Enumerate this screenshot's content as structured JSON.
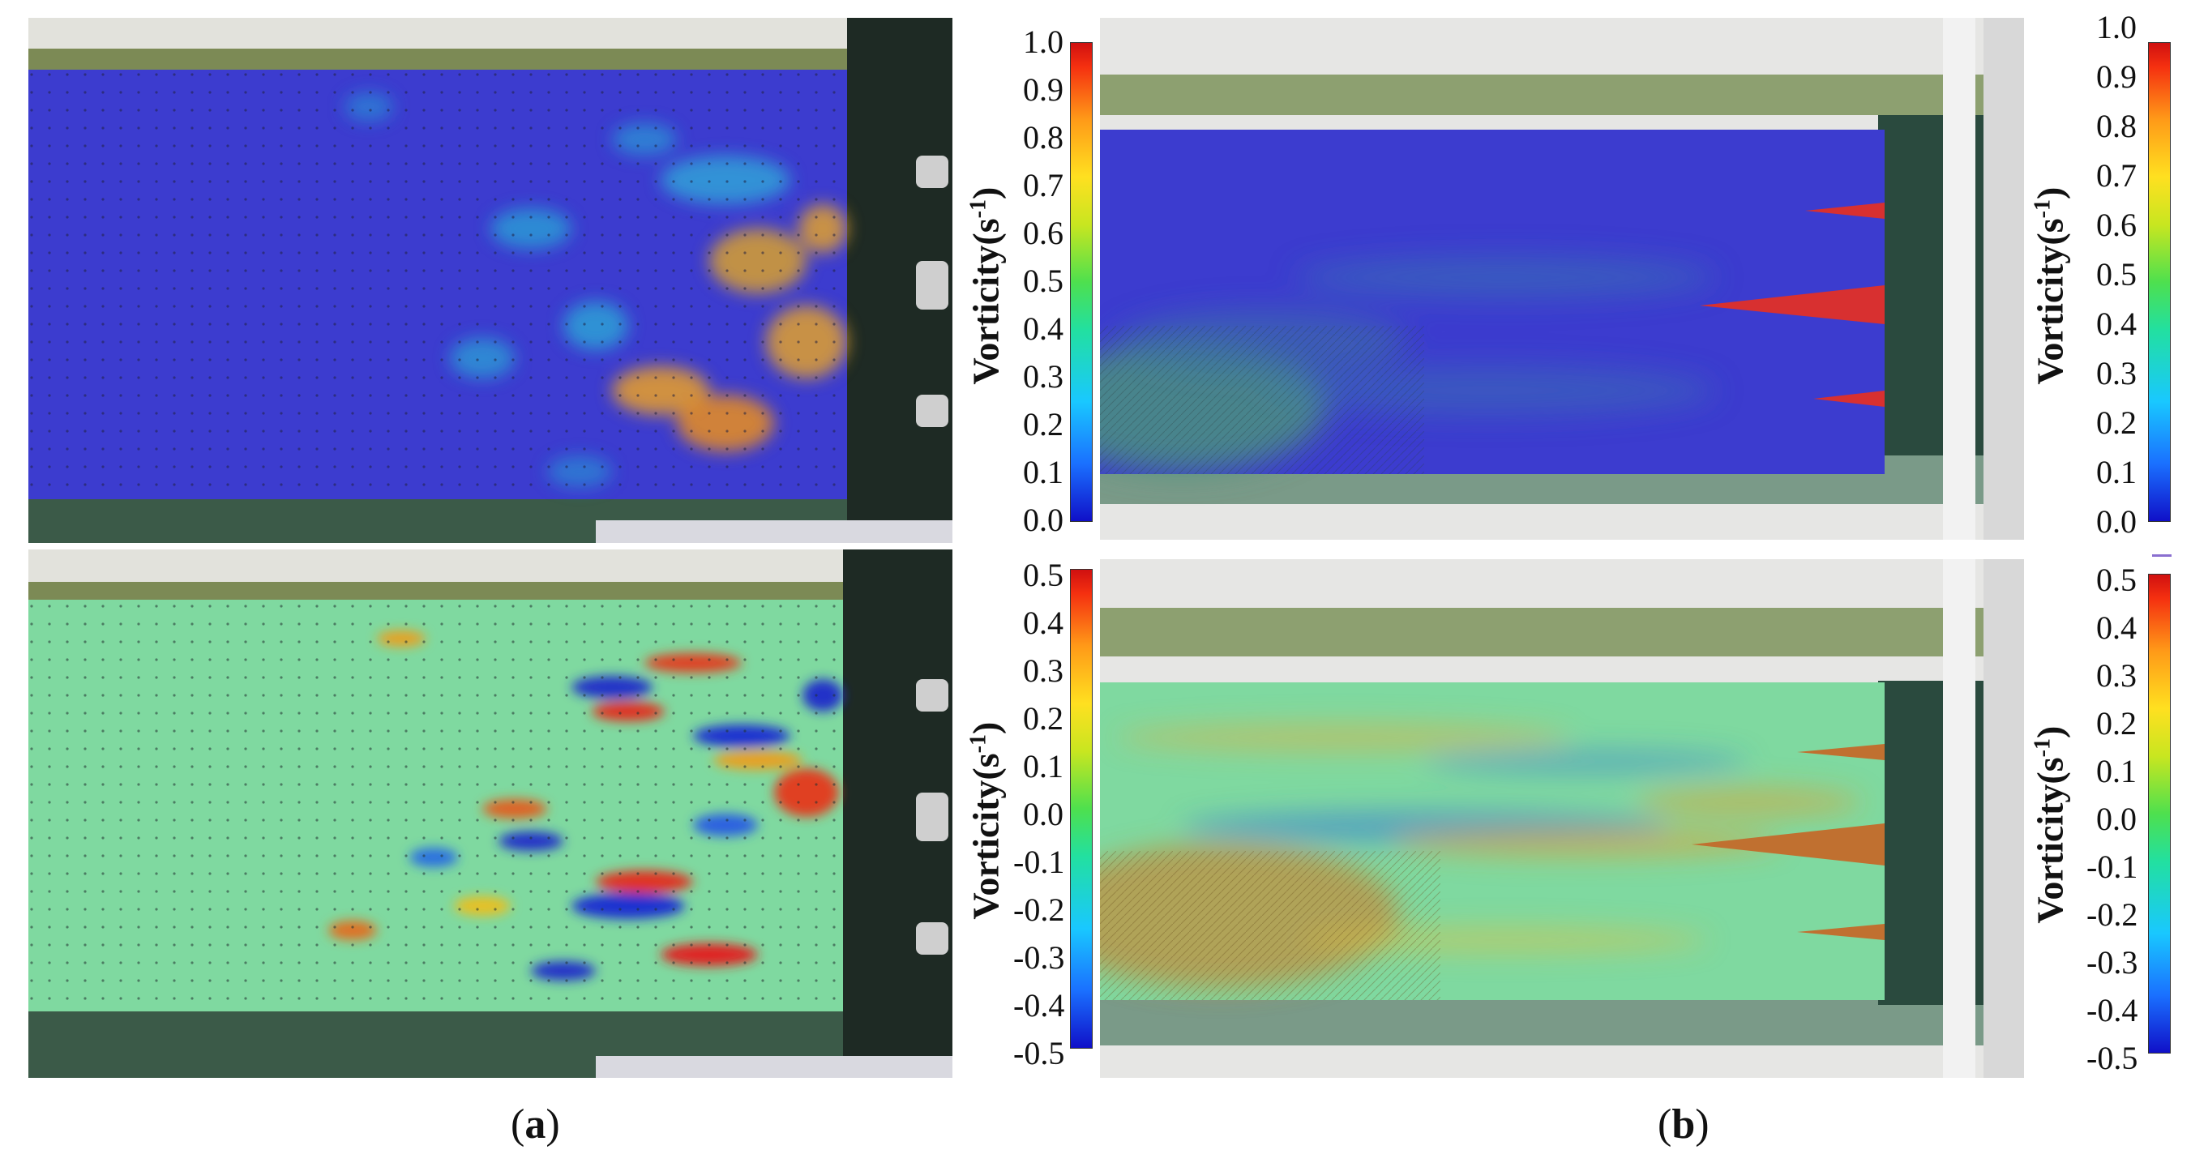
{
  "colorbars": {
    "top_left": {
      "title_prefix": "Vorticity(s",
      "title_exp": "-1",
      "title_suffix": ")",
      "ticks": [
        "1.0",
        "0.9",
        "0.8",
        "0.7",
        "0.6",
        "0.5",
        "0.4",
        "0.3",
        "0.2",
        "0.1",
        "0.0"
      ]
    },
    "top_right": {
      "title_prefix": "Vorticity(s",
      "title_exp": "-1",
      "title_suffix": ")",
      "ticks": [
        "1.0",
        "0.9",
        "0.8",
        "0.7",
        "0.6",
        "0.5",
        "0.4",
        "0.3",
        "0.2",
        "0.1",
        "0.0"
      ]
    },
    "bottom_left": {
      "title_prefix": "Vorticity(s",
      "title_exp": "-1",
      "title_suffix": ")",
      "ticks": [
        "0.5",
        "0.4",
        "0.3",
        "0.2",
        "0.1",
        "0.0",
        "-0.1",
        "-0.2",
        "-0.3",
        "-0.4",
        "-0.5"
      ]
    },
    "bottom_right": {
      "title_prefix": "Vorticity(s",
      "title_exp": "-1",
      "title_suffix": ")",
      "ticks": [
        "0.5",
        "0.4",
        "0.3",
        "0.2",
        "0.1",
        "0.0",
        "-0.1",
        "-0.2",
        "-0.3",
        "-0.4",
        "-0.5"
      ]
    }
  },
  "labels": {
    "a": {
      "open": "(",
      "letter": "a",
      "close": ")"
    },
    "b": {
      "open": "(",
      "letter": "b",
      "close": ")"
    }
  },
  "colors": {
    "water": "#4a6a50",
    "field_magnitude": "#3c3ccf",
    "field_vorticity": "#7fd9a0",
    "concrete": "#e6e6e4"
  }
}
